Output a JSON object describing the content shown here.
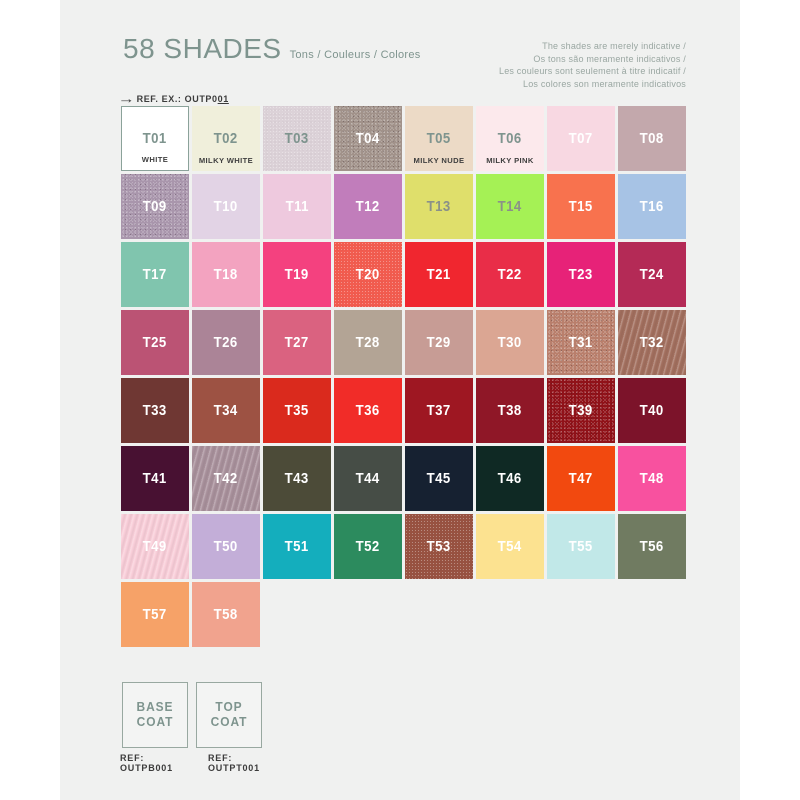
{
  "colors": {
    "page_bg": "#ffffff",
    "card_bg": "#f0f1f0",
    "accent": "#7e948e"
  },
  "header": {
    "title": "58 SHADES",
    "subtitle": "Tons / Couleurs / Colores",
    "disclaimer_lines": [
      "The shades are merely indicative /",
      "Os tons são meramente indicativos /",
      "Les couleurs sont seulement à titre indicatif /",
      "Los colores son meramente indicativos"
    ],
    "ref_example_prefix": "REF. EX.: OUTP0",
    "ref_example_underlined": "01",
    "arrow_icon": "→"
  },
  "swatches": [
    {
      "code": "T01",
      "color": "#ffffff",
      "text": "#7e948e",
      "label": "WHITE",
      "border": true
    },
    {
      "code": "T02",
      "color": "#f0efdb",
      "text": "#7e948e",
      "label": "MILKY WHITE"
    },
    {
      "code": "T03",
      "color": "#dcd2d8",
      "text": "#7e948e",
      "texture": "fine"
    },
    {
      "code": "T04",
      "color": "#a1928a",
      "text": "#ffffff",
      "texture": "glitter"
    },
    {
      "code": "T05",
      "color": "#ecdac6",
      "text": "#7e948e",
      "label": "MILKY NUDE"
    },
    {
      "code": "T06",
      "color": "#fce9ec",
      "text": "#7e948e",
      "label": "MILKY PINK"
    },
    {
      "code": "T07",
      "color": "#f8d8e2",
      "text": "#ffffff"
    },
    {
      "code": "T08",
      "color": "#c3a8ac",
      "text": "#ffffff"
    },
    {
      "code": "T09",
      "color": "#a996ac",
      "text": "#ffffff",
      "texture": "glitter"
    },
    {
      "code": "T10",
      "color": "#e2d3e5",
      "text": "#ffffff"
    },
    {
      "code": "T11",
      "color": "#eec9de",
      "text": "#ffffff"
    },
    {
      "code": "T12",
      "color": "#c17dbb",
      "text": "#ffffff"
    },
    {
      "code": "T13",
      "color": "#dfdf6b",
      "text": "#8b9188"
    },
    {
      "code": "T14",
      "color": "#a5f155",
      "text": "#8b9188"
    },
    {
      "code": "T15",
      "color": "#f8724e",
      "text": "#ffffff"
    },
    {
      "code": "T16",
      "color": "#a7c3e5",
      "text": "#ffffff"
    },
    {
      "code": "T17",
      "color": "#80c5ae",
      "text": "#ffffff"
    },
    {
      "code": "T18",
      "color": "#f3a3c0",
      "text": "#ffffff"
    },
    {
      "code": "T19",
      "color": "#f4417f",
      "text": "#ffffff"
    },
    {
      "code": "T20",
      "color": "#f25c4f",
      "text": "#ffffff",
      "texture": "fine"
    },
    {
      "code": "T21",
      "color": "#f0262f",
      "text": "#ffffff"
    },
    {
      "code": "T22",
      "color": "#e92d48",
      "text": "#ffffff"
    },
    {
      "code": "T23",
      "color": "#e72278",
      "text": "#ffffff"
    },
    {
      "code": "T24",
      "color": "#b42a56",
      "text": "#ffffff"
    },
    {
      "code": "T25",
      "color": "#bb5374",
      "text": "#ffffff"
    },
    {
      "code": "T26",
      "color": "#ab8497",
      "text": "#ffffff"
    },
    {
      "code": "T27",
      "color": "#da6280",
      "text": "#ffffff"
    },
    {
      "code": "T28",
      "color": "#b3a495",
      "text": "#ffffff"
    },
    {
      "code": "T29",
      "color": "#c79c95",
      "text": "#ffffff"
    },
    {
      "code": "T30",
      "color": "#dba693",
      "text": "#ffffff"
    },
    {
      "code": "T31",
      "color": "#b97f6c",
      "text": "#ffffff",
      "texture": "glitter"
    },
    {
      "code": "T32",
      "color": "#a3705f",
      "text": "#ffffff",
      "texture": "shimmer"
    },
    {
      "code": "T33",
      "color": "#6f3733",
      "text": "#ffffff"
    },
    {
      "code": "T34",
      "color": "#9d5243",
      "text": "#ffffff"
    },
    {
      "code": "T35",
      "color": "#da2a1d",
      "text": "#ffffff"
    },
    {
      "code": "T36",
      "color": "#f12c28",
      "text": "#ffffff"
    },
    {
      "code": "T37",
      "color": "#9e1722",
      "text": "#ffffff"
    },
    {
      "code": "T38",
      "color": "#8f1727",
      "text": "#ffffff"
    },
    {
      "code": "T39",
      "color": "#901219",
      "text": "#ffffff",
      "texture": "glitter"
    },
    {
      "code": "T40",
      "color": "#7c132a",
      "text": "#ffffff"
    },
    {
      "code": "T41",
      "color": "#481132",
      "text": "#ffffff"
    },
    {
      "code": "T42",
      "color": "#a9919c",
      "text": "#ffffff",
      "texture": "shimmer"
    },
    {
      "code": "T43",
      "color": "#4c4b38",
      "text": "#ffffff"
    },
    {
      "code": "T44",
      "color": "#464d46",
      "text": "#ffffff"
    },
    {
      "code": "T45",
      "color": "#162131",
      "text": "#ffffff"
    },
    {
      "code": "T46",
      "color": "#0f2924",
      "text": "#ffffff"
    },
    {
      "code": "T47",
      "color": "#f2490f",
      "text": "#ffffff"
    },
    {
      "code": "T48",
      "color": "#f8519f",
      "text": "#ffffff"
    },
    {
      "code": "T49",
      "color": "#f9ced9",
      "text": "#ffffff",
      "texture": "shimmer"
    },
    {
      "code": "T50",
      "color": "#c3aed8",
      "text": "#ffffff"
    },
    {
      "code": "T51",
      "color": "#14aebd",
      "text": "#ffffff"
    },
    {
      "code": "T52",
      "color": "#2c8b5e",
      "text": "#ffffff"
    },
    {
      "code": "T53",
      "color": "#985241",
      "text": "#ffffff",
      "texture": "fine"
    },
    {
      "code": "T54",
      "color": "#fce290",
      "text": "#ffffff"
    },
    {
      "code": "T55",
      "color": "#c1e8e8",
      "text": "#ffffff"
    },
    {
      "code": "T56",
      "color": "#707b61",
      "text": "#ffffff"
    },
    {
      "code": "T57",
      "color": "#f6a268",
      "text": "#ffffff"
    },
    {
      "code": "T58",
      "color": "#f1a38e",
      "text": "#ffffff"
    }
  ],
  "coats": [
    {
      "label": "BASE COAT",
      "ref": "REF: OUTPB001"
    },
    {
      "label": "TOP COAT",
      "ref": "REF: OUTPT001"
    }
  ]
}
